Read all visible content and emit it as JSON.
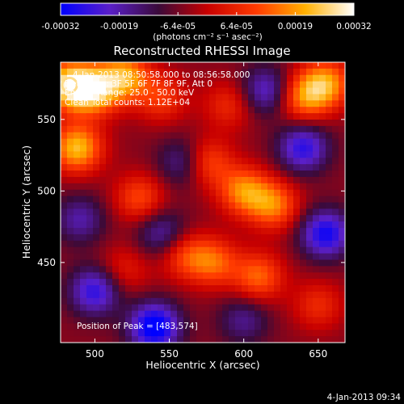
{
  "chart_data": {
    "type": "heatmap",
    "title": "Reconstructed RHESSI Image",
    "xlabel": "Heliocentric X (arcsec)",
    "ylabel": "Heliocentric Y (arcsec)",
    "xlim": [
      477,
      668
    ],
    "ylim": [
      394,
      590
    ],
    "xticks": [
      500,
      550,
      600,
      650
    ],
    "yticks": [
      450,
      500,
      550
    ],
    "colorbar": {
      "label": "(photons cm⁻² s⁻¹ asec⁻²)",
      "ticks": [
        "-0.00032",
        "-0.00019",
        "-6.4e-05",
        "6.4e-05",
        "0.00019",
        "0.00032"
      ],
      "range": [
        -0.00032,
        0.00032
      ],
      "stops": [
        "#0000ff",
        "#5a1fc8",
        "#3a0a3a",
        "#c80000",
        "#ff3a00",
        "#ffb000",
        "#ffffff"
      ]
    },
    "grid": false,
    "annotations": {
      "time_range": "4-Jan-2013 08:50:58.000 to 08:56:58.000",
      "detectors": "Detectors: 3F 5F 6F 7F 8F 9F, Att 0",
      "energy_range": "Energy Range: 25.0 - 50.0 keV",
      "clean_counts": "Clean     Total counts: 1.12E+04",
      "peak_position": "Position of Peak = [483,574]"
    },
    "peak": [
      483,
      574
    ],
    "bright_sources": [
      {
        "x": 483,
        "y": 574,
        "value": 0.00032
      },
      {
        "x": 488,
        "y": 530,
        "value": 0.00028
      },
      {
        "x": 500,
        "y": 570,
        "value": 0.00026
      },
      {
        "x": 520,
        "y": 580,
        "value": 0.00025
      },
      {
        "x": 655,
        "y": 575,
        "value": 0.00024
      },
      {
        "x": 640,
        "y": 565,
        "value": 0.0002
      },
      {
        "x": 600,
        "y": 500,
        "value": 0.00022
      },
      {
        "x": 620,
        "y": 490,
        "value": 0.00021
      },
      {
        "x": 575,
        "y": 520,
        "value": 0.00018
      },
      {
        "x": 580,
        "y": 450,
        "value": 0.00018
      },
      {
        "x": 610,
        "y": 440,
        "value": 0.00019
      },
      {
        "x": 560,
        "y": 455,
        "value": 0.00015
      },
      {
        "x": 530,
        "y": 495,
        "value": 0.00016
      },
      {
        "x": 545,
        "y": 565,
        "value": 0.00014
      },
      {
        "x": 590,
        "y": 560,
        "value": 0.00012
      },
      {
        "x": 650,
        "y": 420,
        "value": 0.00012
      },
      {
        "x": 520,
        "y": 445,
        "value": 0.0001
      }
    ],
    "dim_sources": [
      {
        "x": 540,
        "y": 405,
        "value": -0.0003
      },
      {
        "x": 500,
        "y": 430,
        "value": -0.00022
      },
      {
        "x": 655,
        "y": 470,
        "value": -0.00025
      },
      {
        "x": 640,
        "y": 530,
        "value": -0.00022
      },
      {
        "x": 615,
        "y": 570,
        "value": -0.00018
      },
      {
        "x": 560,
        "y": 520,
        "value": -0.00015
      },
      {
        "x": 545,
        "y": 470,
        "value": -0.00015
      },
      {
        "x": 490,
        "y": 480,
        "value": -0.00014
      },
      {
        "x": 600,
        "y": 410,
        "value": -0.00012
      }
    ]
  },
  "footer": {
    "date": "4-Jan-2013 09:34"
  }
}
